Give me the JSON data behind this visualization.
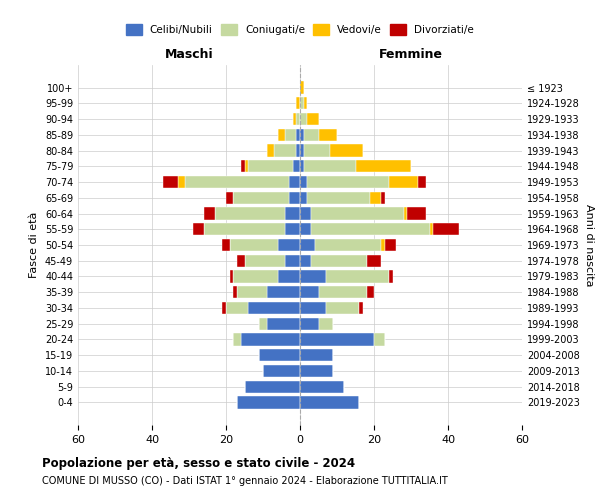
{
  "age_groups": [
    "0-4",
    "5-9",
    "10-14",
    "15-19",
    "20-24",
    "25-29",
    "30-34",
    "35-39",
    "40-44",
    "45-49",
    "50-54",
    "55-59",
    "60-64",
    "65-69",
    "70-74",
    "75-79",
    "80-84",
    "85-89",
    "90-94",
    "95-99",
    "100+"
  ],
  "birth_years": [
    "2019-2023",
    "2014-2018",
    "2009-2013",
    "2004-2008",
    "1999-2003",
    "1994-1998",
    "1989-1993",
    "1984-1988",
    "1979-1983",
    "1974-1978",
    "1969-1973",
    "1964-1968",
    "1959-1963",
    "1954-1958",
    "1949-1953",
    "1944-1948",
    "1939-1943",
    "1934-1938",
    "1929-1933",
    "1924-1928",
    "≤ 1923"
  ],
  "colors": {
    "celibi": "#4472c4",
    "coniugati": "#c5d9a0",
    "vedovi": "#ffc000",
    "divorziati": "#c00000"
  },
  "male": {
    "celibi": [
      17,
      15,
      10,
      11,
      16,
      9,
      14,
      9,
      6,
      4,
      6,
      4,
      4,
      3,
      3,
      2,
      1,
      1,
      0,
      0,
      0
    ],
    "coniugati": [
      0,
      0,
      0,
      0,
      2,
      2,
      6,
      8,
      12,
      11,
      13,
      22,
      19,
      15,
      28,
      12,
      6,
      3,
      1,
      0,
      0
    ],
    "vedovi": [
      0,
      0,
      0,
      0,
      0,
      0,
      0,
      0,
      0,
      0,
      0,
      0,
      0,
      0,
      2,
      1,
      2,
      2,
      1,
      1,
      0
    ],
    "divorziati": [
      0,
      0,
      0,
      0,
      0,
      0,
      1,
      1,
      1,
      2,
      2,
      3,
      3,
      2,
      4,
      1,
      0,
      0,
      0,
      0,
      0
    ]
  },
  "female": {
    "celibi": [
      16,
      12,
      9,
      9,
      20,
      5,
      7,
      5,
      7,
      3,
      4,
      3,
      3,
      2,
      2,
      1,
      1,
      1,
      0,
      0,
      0
    ],
    "coniugati": [
      0,
      0,
      0,
      0,
      3,
      4,
      9,
      13,
      17,
      15,
      18,
      32,
      25,
      17,
      22,
      14,
      7,
      4,
      2,
      1,
      0
    ],
    "vedovi": [
      0,
      0,
      0,
      0,
      0,
      0,
      0,
      0,
      0,
      0,
      1,
      1,
      1,
      3,
      8,
      15,
      9,
      5,
      3,
      1,
      1
    ],
    "divorziati": [
      0,
      0,
      0,
      0,
      0,
      0,
      1,
      2,
      1,
      4,
      3,
      7,
      5,
      1,
      2,
      0,
      0,
      0,
      0,
      0,
      0
    ]
  },
  "title_main": "Popolazione per età, sesso e stato civile - 2024",
  "title_sub": "COMUNE DI MUSSO (CO) - Dati ISTAT 1° gennaio 2024 - Elaborazione TUTTITALIA.IT",
  "xlabel_left": "Maschi",
  "xlabel_right": "Femmine",
  "ylabel_left": "Fasce di età",
  "ylabel_right": "Anni di nascita",
  "xlim": 60,
  "legend_labels": [
    "Celibi/Nubili",
    "Coniugati/e",
    "Vedovi/e",
    "Divorziati/e"
  ],
  "bg_color": "#ffffff",
  "grid_color": "#cccccc"
}
